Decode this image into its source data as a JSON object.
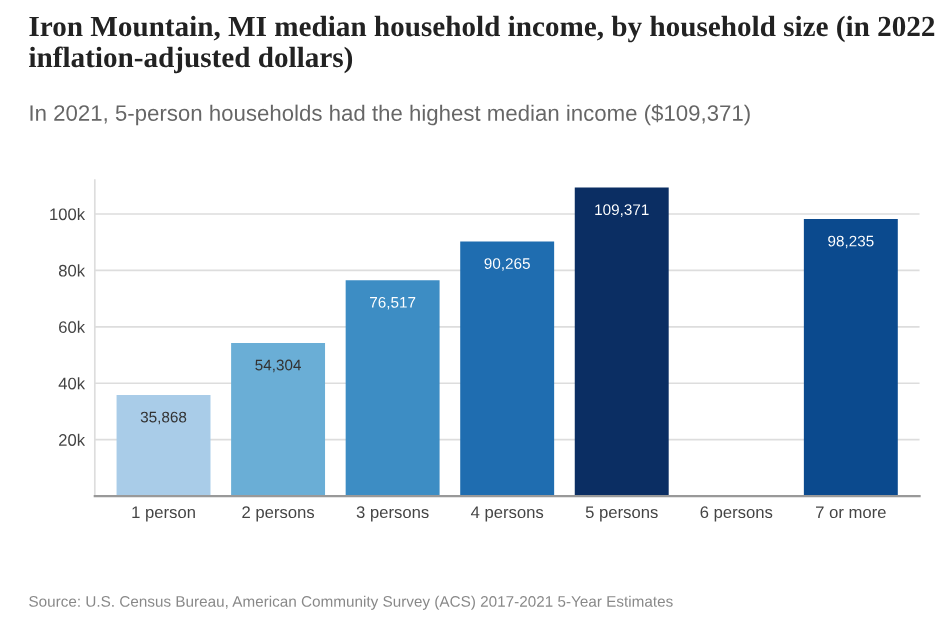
{
  "chart_data": {
    "type": "bar",
    "title": "Iron Mountain, MI median household income, by household size (in 2022 inflation-adjusted dollars)",
    "subtitle": "In 2021, 5-person households had the highest median income ($109,371)",
    "categories": [
      "1 person",
      "2 persons",
      "3 persons",
      "4 persons",
      "5 persons",
      "6 persons",
      "7 or more"
    ],
    "values": [
      35868,
      54304,
      76517,
      90265,
      109371,
      null,
      98235
    ],
    "colors": [
      "#a9cce8",
      "#6aaed6",
      "#3d8dc4",
      "#1f6db0",
      "#0b2e63",
      "#0b4a8e",
      "#0b4a8e"
    ],
    "value_labels": [
      "35,868",
      "54,304",
      "76,517",
      "90,265",
      "109,371",
      null,
      "98,235"
    ],
    "ylim": [
      0,
      112000
    ],
    "yticks": [
      {
        "value": 0,
        "label": null
      },
      {
        "value": 20000,
        "label": "20k"
      },
      {
        "value": 40000,
        "label": "40k"
      },
      {
        "value": 60000,
        "label": "60k"
      },
      {
        "value": 80000,
        "label": "80k"
      },
      {
        "value": 100000,
        "label": "100k"
      }
    ],
    "grid": "y",
    "annotations": [
      "Source: U.S. Census Bureau, American Community Survey (ACS) 2017-2021 5-Year Estimates"
    ]
  }
}
